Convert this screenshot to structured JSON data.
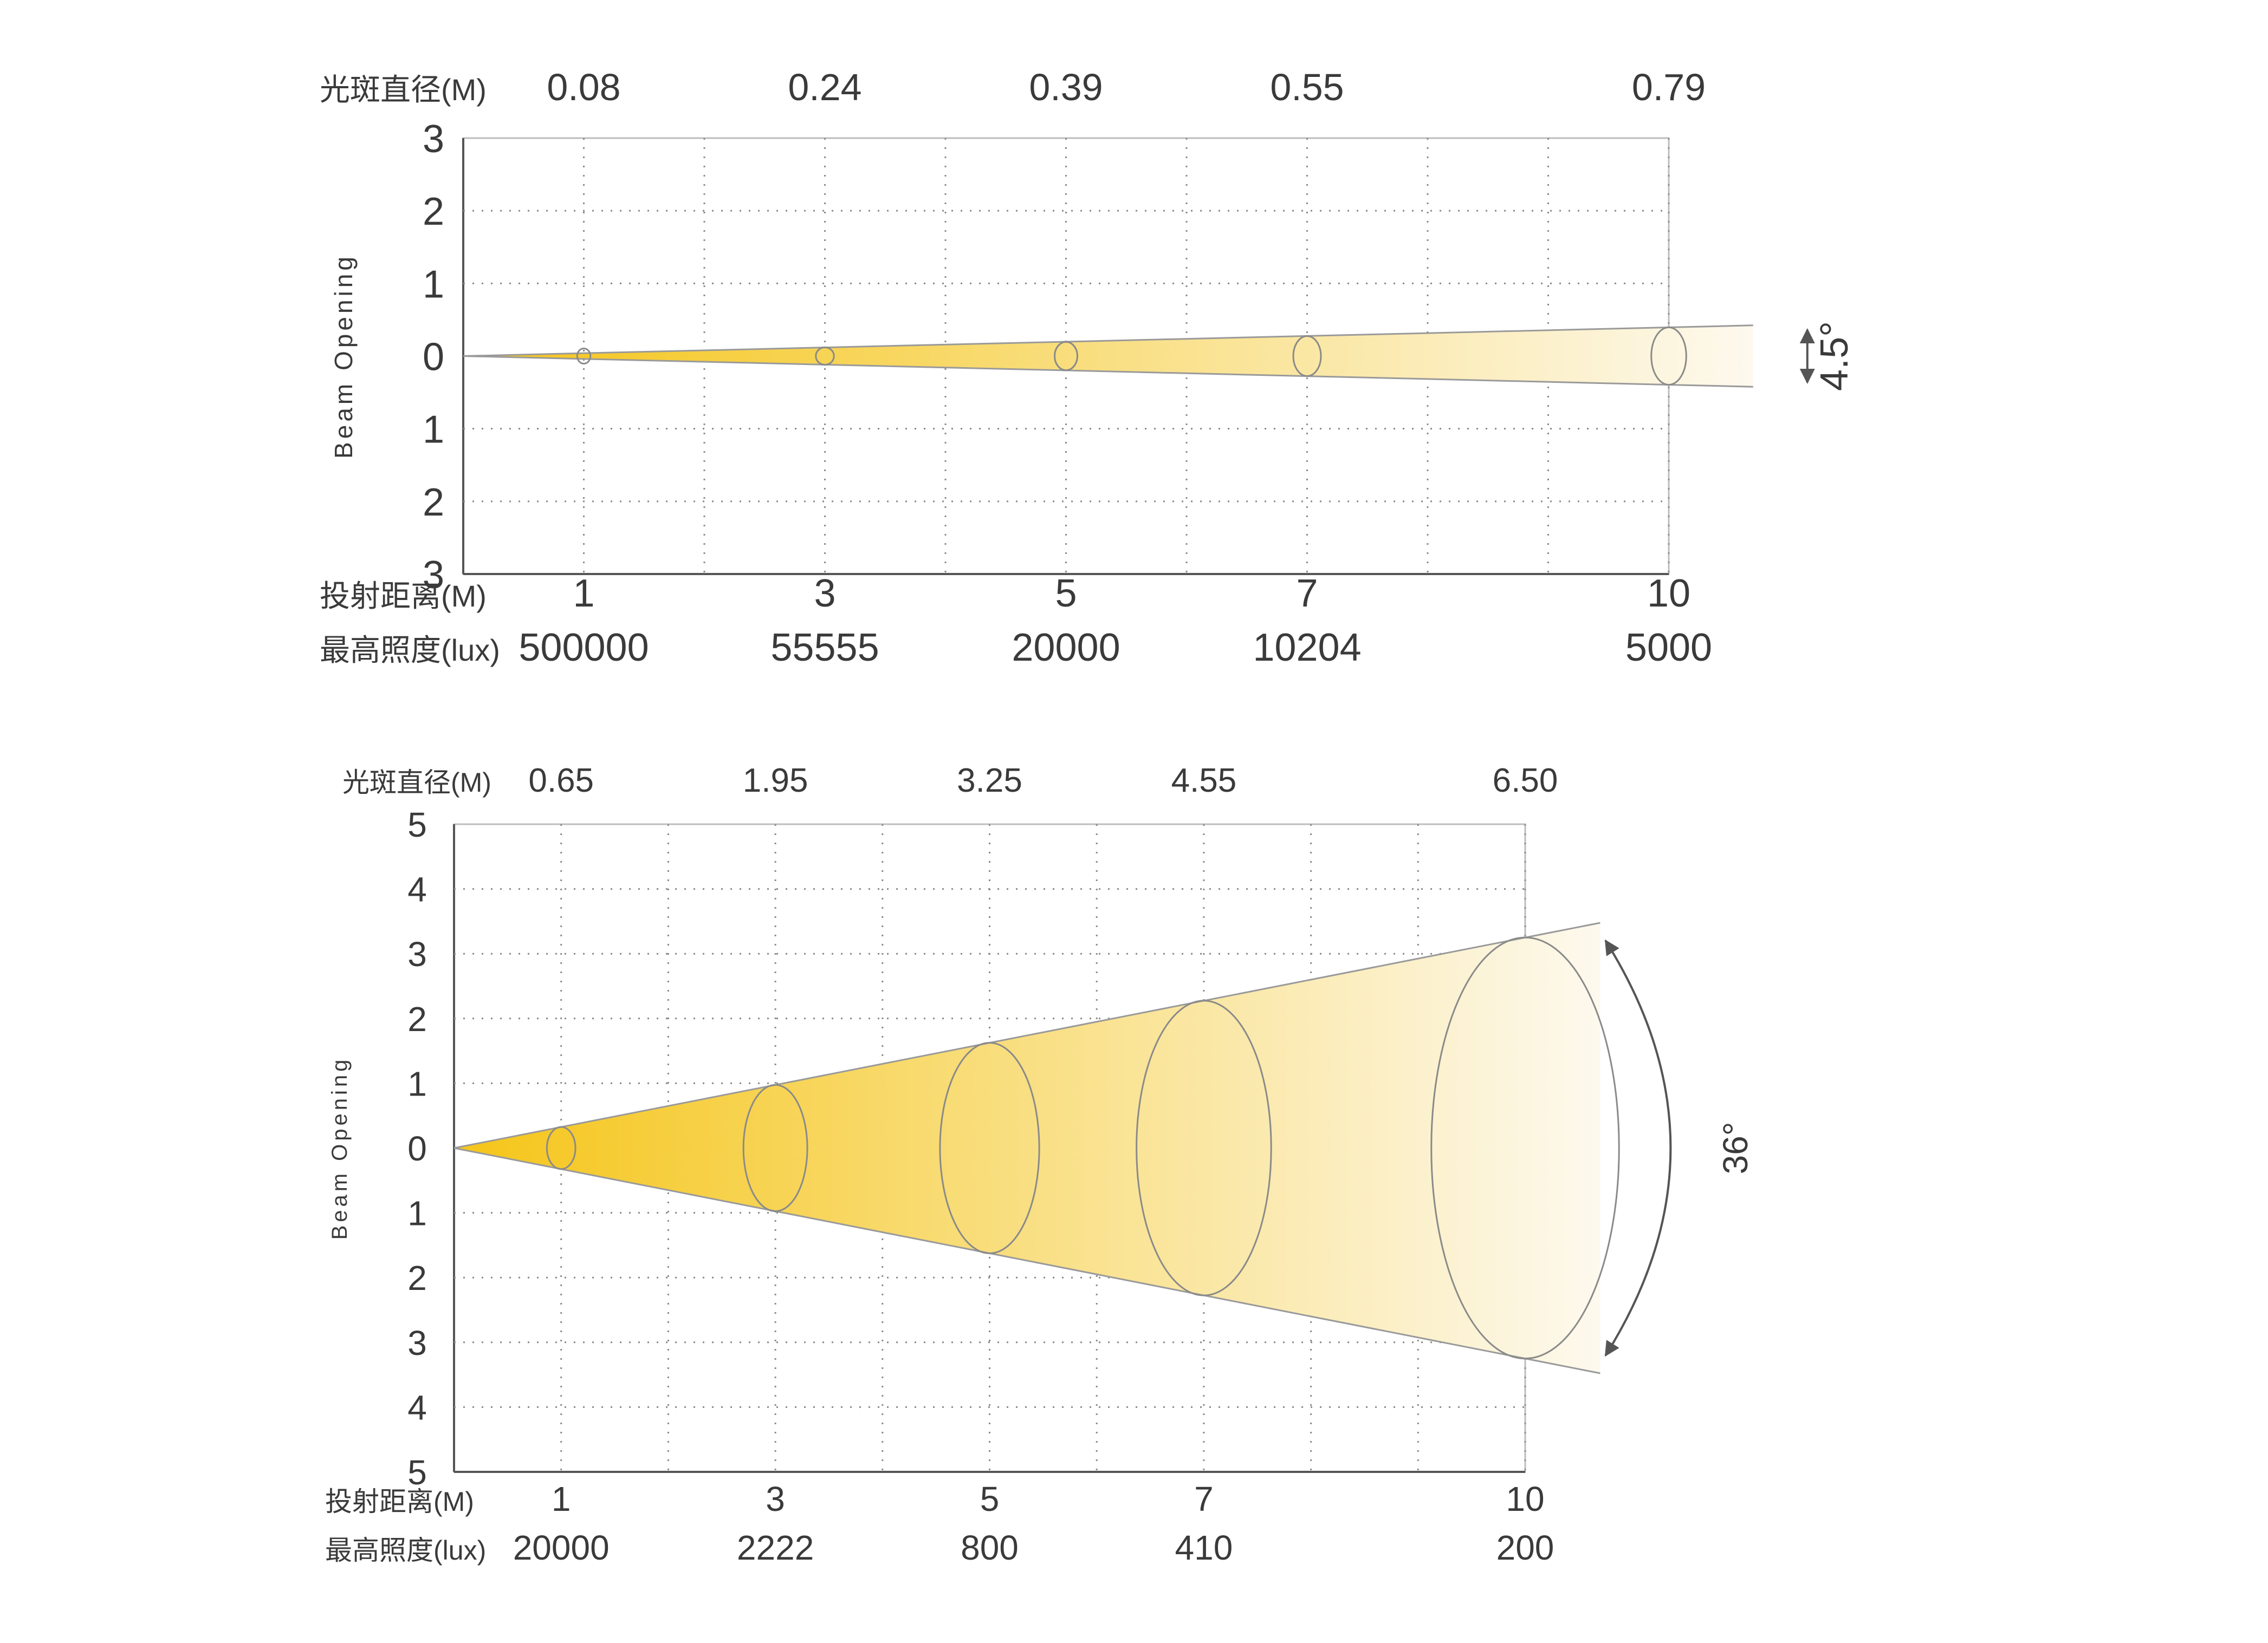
{
  "chart_data": [
    {
      "type": "beam-angle",
      "beam_angle_label": "4.5°",
      "y_axis_label": "Beam Opening",
      "y_ticks": [
        "3",
        "2",
        "1",
        "0",
        "1",
        "2",
        "3"
      ],
      "spot_diameter_label": "光斑直径(M)",
      "distance_label": "投射距离(M)",
      "illuminance_label": "最高照度(lux)",
      "distance_range": [
        0,
        10
      ],
      "opening_range": [
        -3,
        3
      ],
      "points": [
        {
          "distance": 1,
          "distance_label": "1",
          "diameter": 0.08,
          "diameter_label": "0.08",
          "lux": 500000,
          "lux_label": "500000"
        },
        {
          "distance": 3,
          "distance_label": "3",
          "diameter": 0.24,
          "diameter_label": "0.24",
          "lux": 55555,
          "lux_label": "55555"
        },
        {
          "distance": 5,
          "distance_label": "5",
          "diameter": 0.39,
          "diameter_label": "0.39",
          "lux": 20000,
          "lux_label": "20000"
        },
        {
          "distance": 7,
          "distance_label": "7",
          "diameter": 0.55,
          "diameter_label": "0.55",
          "lux": 10204,
          "lux_label": "10204"
        },
        {
          "distance": 10,
          "distance_label": "10",
          "diameter": 0.79,
          "diameter_label": "0.79",
          "lux": 5000,
          "lux_label": "5000"
        }
      ],
      "beam_color_start": "#f5c518",
      "beam_color_end": "#fdf9ee",
      "grid": true
    },
    {
      "type": "beam-angle",
      "beam_angle_label": "36°",
      "y_axis_label": "Beam Opening",
      "y_ticks": [
        "5",
        "4",
        "3",
        "2",
        "1",
        "0",
        "1",
        "2",
        "3",
        "4",
        "5"
      ],
      "spot_diameter_label": "光斑直径(M)",
      "distance_label": "投射距离(M)",
      "illuminance_label": "最高照度(lux)",
      "distance_range": [
        0,
        10
      ],
      "opening_range": [
        -5,
        5
      ],
      "points": [
        {
          "distance": 1,
          "distance_label": "1",
          "diameter": 0.65,
          "diameter_label": "0.65",
          "lux": 20000,
          "lux_label": "20000"
        },
        {
          "distance": 3,
          "distance_label": "3",
          "diameter": 1.95,
          "diameter_label": "1.95",
          "lux": 2222,
          "lux_label": "2222"
        },
        {
          "distance": 5,
          "distance_label": "5",
          "diameter": 3.25,
          "diameter_label": "3.25",
          "lux": 800,
          "lux_label": "800"
        },
        {
          "distance": 7,
          "distance_label": "7",
          "diameter": 4.55,
          "diameter_label": "4.55",
          "lux": 410,
          "lux_label": "410"
        },
        {
          "distance": 10,
          "distance_label": "10",
          "diameter": 6.5,
          "diameter_label": "6.50",
          "lux": 200,
          "lux_label": "200"
        }
      ],
      "beam_color_start": "#f5c518",
      "beam_color_end": "#fdf9ee",
      "grid": true
    }
  ]
}
